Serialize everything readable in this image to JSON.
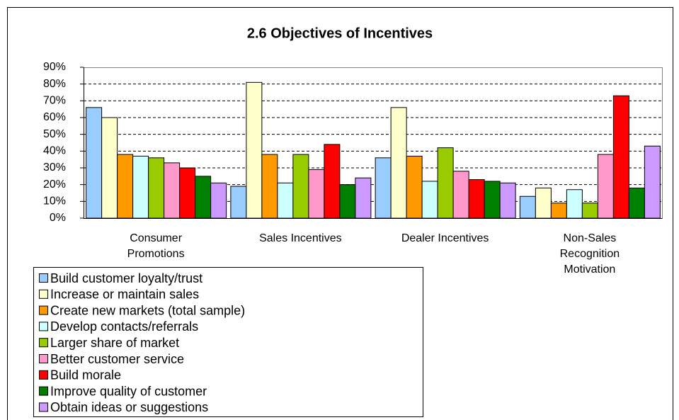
{
  "chart_data": {
    "type": "bar",
    "title": "2.6 Objectives of Incentives",
    "categories": [
      "Consumer Promotions",
      "Sales Incentives",
      "Dealer Incentives",
      "Non-Sales Recognition Motivation"
    ],
    "series": [
      {
        "name": "Build customer loyalty/trust",
        "color": "#99ccff",
        "values": [
          66,
          19,
          36,
          13
        ]
      },
      {
        "name": "Increase or maintain sales",
        "color": "#ffffcc",
        "values": [
          60,
          81,
          66,
          18
        ]
      },
      {
        "name": "Create new markets (total sample)",
        "color": "#ff9900",
        "values": [
          38,
          38,
          37,
          9
        ]
      },
      {
        "name": "Develop contacts/referrals",
        "color": "#ccffff",
        "values": [
          37,
          21,
          22,
          17
        ]
      },
      {
        "name": "Larger share of market",
        "color": "#99cc00",
        "values": [
          36,
          38,
          42,
          9
        ]
      },
      {
        "name": "Better customer service",
        "color": "#ff99cc",
        "values": [
          33,
          29,
          28,
          38
        ]
      },
      {
        "name": "Build morale",
        "color": "#ff0000",
        "values": [
          30,
          44,
          23,
          73
        ]
      },
      {
        "name": "Improve quality of customer",
        "color": "#008000",
        "values": [
          25,
          20,
          22,
          18
        ]
      },
      {
        "name": "Obtain ideas or suggestions",
        "color": "#cc99ff",
        "values": [
          21,
          24,
          21,
          43
        ]
      }
    ],
    "ylim": [
      0,
      90
    ],
    "yticks": [
      {
        "value": 0,
        "label": "0%"
      },
      {
        "value": 10,
        "label": "10%"
      },
      {
        "value": 20,
        "label": "20%"
      },
      {
        "value": 30,
        "label": "30%"
      },
      {
        "value": 40,
        "label": "40%"
      },
      {
        "value": 50,
        "label": "50%"
      },
      {
        "value": 60,
        "label": "60%"
      },
      {
        "value": 70,
        "label": "70%"
      },
      {
        "value": 80,
        "label": "80%"
      },
      {
        "value": 90,
        "label": "90%"
      }
    ],
    "grid": true
  }
}
